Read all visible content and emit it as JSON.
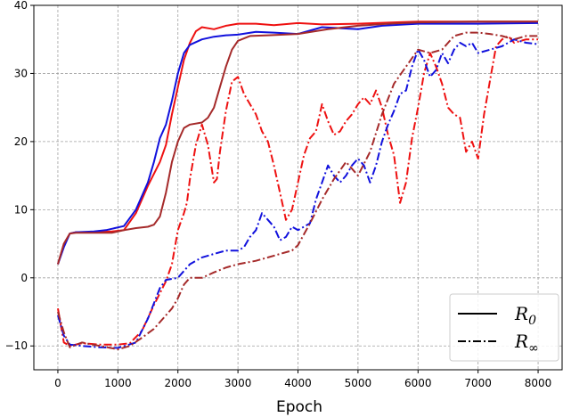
{
  "chart_data": {
    "type": "line",
    "xlabel": "Epoch",
    "ylabel": "",
    "xlim": [
      -400,
      8400
    ],
    "ylim": [
      -13.5,
      40
    ],
    "xticks": [
      0,
      1000,
      2000,
      3000,
      4000,
      5000,
      6000,
      7000,
      8000
    ],
    "yticks": [
      -10,
      0,
      10,
      20,
      30,
      40
    ],
    "grid": true,
    "legend_position": "bottom-right",
    "legend": [
      {
        "label": "R",
        "sub": "0",
        "style": "solid"
      },
      {
        "label": "R",
        "sub": "∞",
        "style": "dashdot"
      }
    ],
    "colors": {
      "red": "#ee1111",
      "blue": "#1111dd",
      "brown": "#a52a2a"
    },
    "series": [
      {
        "color": "red",
        "style": "solid",
        "points": [
          [
            0,
            2.0
          ],
          [
            100,
            5.0
          ],
          [
            200,
            6.5
          ],
          [
            300,
            6.7
          ],
          [
            600,
            6.7
          ],
          [
            900,
            6.8
          ],
          [
            1100,
            7.0
          ],
          [
            1300,
            9.5
          ],
          [
            1500,
            13.5
          ],
          [
            1700,
            17.0
          ],
          [
            1800,
            19.5
          ],
          [
            1900,
            24.0
          ],
          [
            2000,
            28.0
          ],
          [
            2100,
            32.0
          ],
          [
            2200,
            34.5
          ],
          [
            2300,
            36.2
          ],
          [
            2400,
            36.8
          ],
          [
            2600,
            36.5
          ],
          [
            2800,
            37.0
          ],
          [
            3000,
            37.3
          ],
          [
            3300,
            37.3
          ],
          [
            3600,
            37.1
          ],
          [
            4000,
            37.4
          ],
          [
            4400,
            37.2
          ],
          [
            5000,
            37.3
          ],
          [
            5600,
            37.5
          ],
          [
            6000,
            37.6
          ],
          [
            7000,
            37.6
          ],
          [
            8000,
            37.6
          ]
        ]
      },
      {
        "color": "blue",
        "style": "solid",
        "points": [
          [
            0,
            2.0
          ],
          [
            100,
            4.5
          ],
          [
            200,
            6.5
          ],
          [
            300,
            6.7
          ],
          [
            600,
            6.8
          ],
          [
            800,
            7.0
          ],
          [
            1100,
            7.6
          ],
          [
            1300,
            10.0
          ],
          [
            1500,
            14.0
          ],
          [
            1600,
            17.0
          ],
          [
            1700,
            20.5
          ],
          [
            1800,
            22.5
          ],
          [
            1900,
            26.0
          ],
          [
            2000,
            30.0
          ],
          [
            2100,
            33.0
          ],
          [
            2200,
            34.2
          ],
          [
            2400,
            35.0
          ],
          [
            2600,
            35.4
          ],
          [
            2800,
            35.6
          ],
          [
            3000,
            35.7
          ],
          [
            3300,
            36.1
          ],
          [
            3600,
            36.0
          ],
          [
            4000,
            35.8
          ],
          [
            4400,
            36.8
          ],
          [
            5000,
            36.5
          ],
          [
            5400,
            37.0
          ],
          [
            6000,
            37.3
          ],
          [
            7000,
            37.3
          ],
          [
            8000,
            37.4
          ]
        ]
      },
      {
        "color": "brown",
        "style": "solid",
        "points": [
          [
            0,
            2.0
          ],
          [
            100,
            5.0
          ],
          [
            200,
            6.5
          ],
          [
            300,
            6.6
          ],
          [
            600,
            6.6
          ],
          [
            900,
            6.6
          ],
          [
            1100,
            7.0
          ],
          [
            1300,
            7.3
          ],
          [
            1500,
            7.5
          ],
          [
            1600,
            7.8
          ],
          [
            1700,
            9.0
          ],
          [
            1800,
            12.5
          ],
          [
            1900,
            17.0
          ],
          [
            2000,
            20.0
          ],
          [
            2100,
            22.0
          ],
          [
            2200,
            22.5
          ],
          [
            2400,
            22.8
          ],
          [
            2500,
            23.5
          ],
          [
            2600,
            25.0
          ],
          [
            2700,
            28.0
          ],
          [
            2800,
            31.0
          ],
          [
            2900,
            33.5
          ],
          [
            3000,
            34.8
          ],
          [
            3200,
            35.5
          ],
          [
            3500,
            35.6
          ],
          [
            4000,
            35.8
          ],
          [
            4500,
            36.5
          ],
          [
            5000,
            37.0
          ],
          [
            5500,
            37.3
          ],
          [
            6000,
            37.5
          ],
          [
            7000,
            37.6
          ],
          [
            8000,
            37.6
          ]
        ]
      },
      {
        "color": "red",
        "style": "dashdot",
        "points": [
          [
            0,
            -4.5
          ],
          [
            100,
            -9.5
          ],
          [
            200,
            -10.0
          ],
          [
            400,
            -9.6
          ],
          [
            700,
            -9.8
          ],
          [
            1000,
            -9.8
          ],
          [
            1200,
            -9.6
          ],
          [
            1400,
            -7.8
          ],
          [
            1600,
            -4.0
          ],
          [
            1800,
            -0.5
          ],
          [
            1900,
            2.0
          ],
          [
            2000,
            7.0
          ],
          [
            2100,
            9.5
          ],
          [
            2150,
            11.0
          ],
          [
            2200,
            14.5
          ],
          [
            2300,
            19.5
          ],
          [
            2400,
            22.5
          ],
          [
            2500,
            19.5
          ],
          [
            2600,
            14.0
          ],
          [
            2650,
            14.5
          ],
          [
            2700,
            18.5
          ],
          [
            2800,
            24.5
          ],
          [
            2900,
            28.8
          ],
          [
            3000,
            29.5
          ],
          [
            3100,
            27.0
          ],
          [
            3200,
            25.5
          ],
          [
            3300,
            24.0
          ],
          [
            3400,
            21.5
          ],
          [
            3500,
            20.0
          ],
          [
            3600,
            16.5
          ],
          [
            3700,
            12.5
          ],
          [
            3800,
            8.5
          ],
          [
            3900,
            10.0
          ],
          [
            4000,
            14.0
          ],
          [
            4100,
            18.0
          ],
          [
            4200,
            20.5
          ],
          [
            4300,
            21.5
          ],
          [
            4400,
            25.5
          ],
          [
            4500,
            23.0
          ],
          [
            4600,
            21.0
          ],
          [
            4700,
            21.5
          ],
          [
            4800,
            23.0
          ],
          [
            4900,
            24.0
          ],
          [
            5000,
            25.5
          ],
          [
            5100,
            26.5
          ],
          [
            5200,
            25.5
          ],
          [
            5300,
            27.5
          ],
          [
            5400,
            25.0
          ],
          [
            5500,
            21.0
          ],
          [
            5600,
            18.0
          ],
          [
            5700,
            11.0
          ],
          [
            5800,
            14.0
          ],
          [
            5900,
            20.5
          ],
          [
            6000,
            25.0
          ],
          [
            6100,
            30.0
          ],
          [
            6200,
            33.0
          ],
          [
            6300,
            31.0
          ],
          [
            6400,
            28.5
          ],
          [
            6500,
            25.0
          ],
          [
            6600,
            24.0
          ],
          [
            6700,
            23.5
          ],
          [
            6800,
            18.5
          ],
          [
            6900,
            20.0
          ],
          [
            7000,
            17.5
          ],
          [
            7100,
            24.0
          ],
          [
            7200,
            29.0
          ],
          [
            7300,
            34.0
          ],
          [
            7400,
            35.0
          ],
          [
            7500,
            35.5
          ],
          [
            7600,
            34.5
          ],
          [
            7800,
            35.0
          ],
          [
            8000,
            35.0
          ]
        ]
      },
      {
        "color": "blue",
        "style": "dashdot",
        "points": [
          [
            0,
            -5.5
          ],
          [
            100,
            -8.5
          ],
          [
            200,
            -9.8
          ],
          [
            400,
            -10.0
          ],
          [
            700,
            -10.2
          ],
          [
            1000,
            -10.3
          ],
          [
            1300,
            -9.5
          ],
          [
            1500,
            -6.0
          ],
          [
            1700,
            -1.5
          ],
          [
            1800,
            -0.3
          ],
          [
            2000,
            0.0
          ],
          [
            2200,
            2.0
          ],
          [
            2400,
            3.0
          ],
          [
            2600,
            3.5
          ],
          [
            2800,
            4.0
          ],
          [
            3000,
            4.0
          ],
          [
            3100,
            4.5
          ],
          [
            3200,
            6.0
          ],
          [
            3300,
            7.0
          ],
          [
            3400,
            9.5
          ],
          [
            3500,
            8.5
          ],
          [
            3600,
            7.5
          ],
          [
            3700,
            5.5
          ],
          [
            3800,
            6.0
          ],
          [
            3900,
            7.5
          ],
          [
            4000,
            7.0
          ],
          [
            4200,
            8.0
          ],
          [
            4300,
            11.5
          ],
          [
            4400,
            14.0
          ],
          [
            4500,
            16.5
          ],
          [
            4600,
            15.0
          ],
          [
            4700,
            14.0
          ],
          [
            4800,
            15.0
          ],
          [
            4900,
            16.5
          ],
          [
            5000,
            17.5
          ],
          [
            5100,
            16.5
          ],
          [
            5200,
            14.0
          ],
          [
            5300,
            16.5
          ],
          [
            5400,
            20.0
          ],
          [
            5500,
            22.5
          ],
          [
            5600,
            24.5
          ],
          [
            5700,
            27.0
          ],
          [
            5800,
            27.5
          ],
          [
            5900,
            31.0
          ],
          [
            6000,
            33.5
          ],
          [
            6100,
            32.0
          ],
          [
            6200,
            29.5
          ],
          [
            6300,
            30.5
          ],
          [
            6400,
            33.0
          ],
          [
            6500,
            31.5
          ],
          [
            6600,
            33.5
          ],
          [
            6700,
            34.5
          ],
          [
            6800,
            34.0
          ],
          [
            6900,
            34.5
          ],
          [
            7000,
            33.0
          ],
          [
            7200,
            33.5
          ],
          [
            7400,
            34.0
          ],
          [
            7600,
            35.0
          ],
          [
            7800,
            34.5
          ],
          [
            8000,
            34.3
          ]
        ]
      },
      {
        "color": "brown",
        "style": "dashdot",
        "points": [
          [
            0,
            -5.0
          ],
          [
            100,
            -8.0
          ],
          [
            200,
            -10.2
          ],
          [
            400,
            -9.5
          ],
          [
            700,
            -10.0
          ],
          [
            1000,
            -10.5
          ],
          [
            1200,
            -10.0
          ],
          [
            1400,
            -8.8
          ],
          [
            1600,
            -7.5
          ],
          [
            1800,
            -5.5
          ],
          [
            1900,
            -4.5
          ],
          [
            2000,
            -3.0
          ],
          [
            2100,
            -1.0
          ],
          [
            2200,
            0.0
          ],
          [
            2400,
            0.0
          ],
          [
            2600,
            0.8
          ],
          [
            2800,
            1.5
          ],
          [
            3000,
            2.0
          ],
          [
            3300,
            2.5
          ],
          [
            3500,
            3.0
          ],
          [
            3700,
            3.5
          ],
          [
            3900,
            4.0
          ],
          [
            4000,
            4.8
          ],
          [
            4200,
            8.0
          ],
          [
            4400,
            11.5
          ],
          [
            4600,
            14.5
          ],
          [
            4800,
            17.0
          ],
          [
            5000,
            15.0
          ],
          [
            5200,
            18.5
          ],
          [
            5400,
            24.0
          ],
          [
            5600,
            28.5
          ],
          [
            5800,
            31.0
          ],
          [
            6000,
            33.5
          ],
          [
            6200,
            33.0
          ],
          [
            6400,
            33.5
          ],
          [
            6500,
            34.5
          ],
          [
            6600,
            35.5
          ],
          [
            6800,
            36.0
          ],
          [
            7000,
            36.0
          ],
          [
            7200,
            35.8
          ],
          [
            7400,
            35.5
          ],
          [
            7600,
            35.0
          ],
          [
            7800,
            35.5
          ],
          [
            8000,
            35.5
          ]
        ]
      }
    ]
  }
}
